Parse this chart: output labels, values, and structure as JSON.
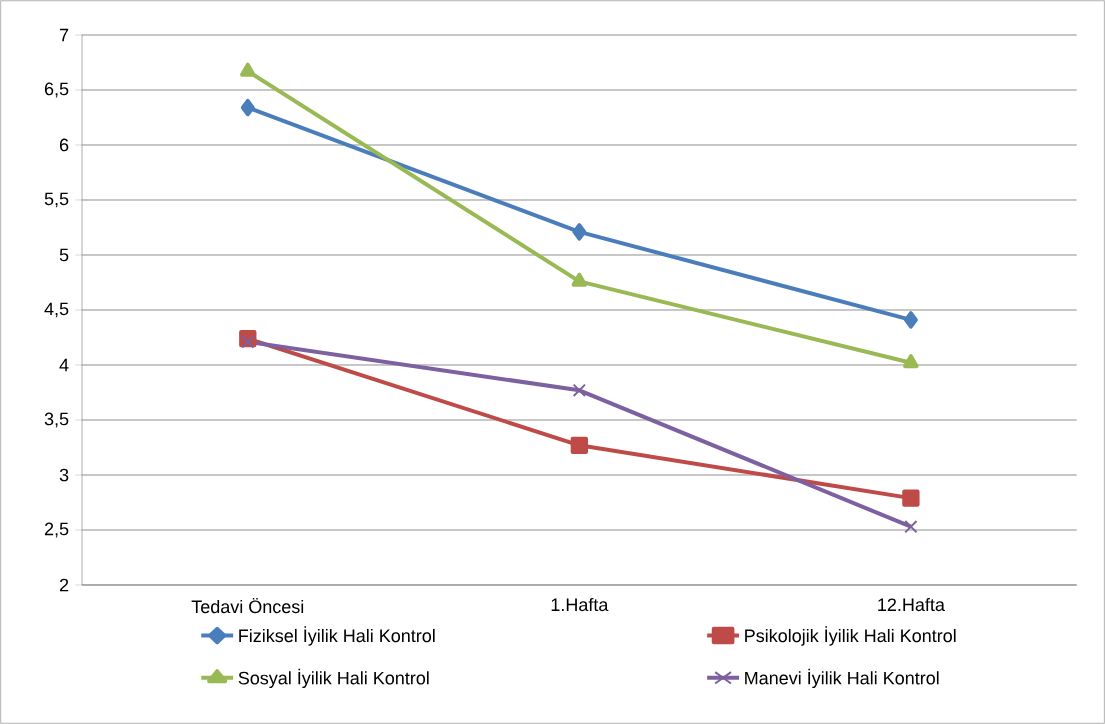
{
  "chart_data": {
    "type": "line",
    "categories": [
      "Tedavi Öncesi",
      "1.Hafta",
      "12.Hafta"
    ],
    "series": [
      {
        "name": "Fiziksel İyilik Hali Kontrol",
        "color": "#4a7ebb",
        "marker": "diamond",
        "values": [
          6.34,
          5.21,
          4.41
        ]
      },
      {
        "name": "Psikolojik İyilik Hali Kontrol",
        "color": "#be4b48",
        "marker": "square",
        "values": [
          4.24,
          3.27,
          2.79
        ]
      },
      {
        "name": "Sosyal İyilik Hali Kontrol",
        "color": "#98b954",
        "marker": "triangle",
        "values": [
          6.67,
          4.76,
          4.02
        ]
      },
      {
        "name": "Manevi İyilik Hali Kontrol",
        "color": "#7d60a0",
        "marker": "cross",
        "values": [
          4.21,
          3.77,
          2.53
        ]
      }
    ],
    "ylim": [
      2,
      7
    ],
    "yticks": [
      2,
      {
        "value": 2.5,
        "label": "2,5"
      },
      3,
      {
        "value": 3.5,
        "label": "3,5"
      },
      4,
      {
        "value": 4.5,
        "label": "4,5"
      },
      5,
      {
        "value": 5.5,
        "label": "5,5"
      },
      6,
      {
        "value": 6.5,
        "label": "6,5"
      },
      7
    ],
    "grid": "y",
    "legend": "bottom"
  }
}
